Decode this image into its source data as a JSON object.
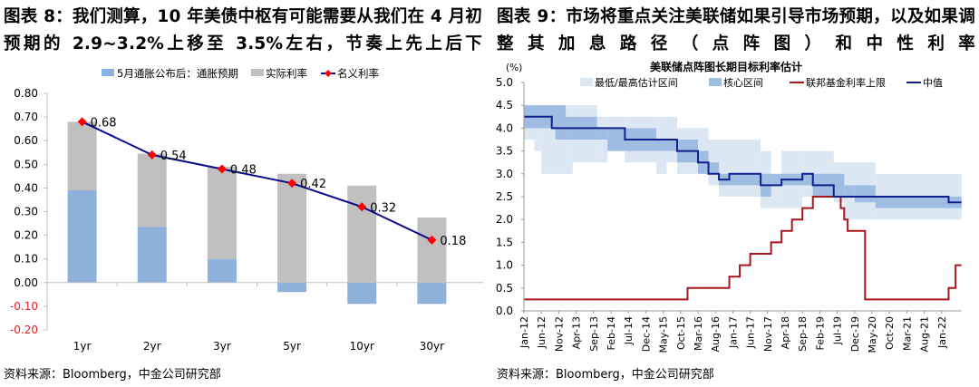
{
  "left": {
    "title": "图表 8：我们测算，10 年美债中枢有可能需要从我们在 4 月初预期的 2.9~3.2%上移至 3.5%左右，节奏上先上后下",
    "source": "资料来源：Bloomberg，中金公司研究部"
  },
  "right": {
    "title": "图表 9：市场将重点关注美联储如果引导市场预期，以及如果调整其加息路径（点阵图）和中性利率",
    "source": "资料来源：Bloomberg，中金公司研究部"
  },
  "chart_data": [
    {
      "type": "bar",
      "stacked": true,
      "categories": [
        "1yr",
        "2yr",
        "3yr",
        "5yr",
        "10yr",
        "30yr"
      ],
      "series": [
        {
          "name": "5月通胀公布后：通胀预期",
          "kind": "bar",
          "color": "#8eb1dc",
          "values": [
            0.39,
            0.235,
            0.1,
            -0.04,
            -0.09,
            -0.09
          ]
        },
        {
          "name": "实际利率",
          "kind": "bar",
          "color": "#c0c0c0",
          "values": [
            0.29,
            0.31,
            0.39,
            0.46,
            0.41,
            0.275
          ]
        },
        {
          "name": "名义利率",
          "kind": "line",
          "color": "#0a0a8c",
          "marker_color": "#ff0000",
          "values": [
            0.68,
            0.54,
            0.48,
            0.42,
            0.32,
            0.18
          ],
          "labels": [
            "0.68",
            "0.54",
            "0.48",
            "0.42",
            "0.32",
            "0.18"
          ]
        }
      ],
      "yticks": [
        "0.80",
        "0.70",
        "0.60",
        "0.50",
        "0.40",
        "0.30",
        "0.20",
        "0.10",
        "0.00",
        "-0.10",
        "-0.20"
      ],
      "ylim": [
        -0.2,
        0.8
      ],
      "negative_tick_color": "#e0202a",
      "legend": "top"
    },
    {
      "type": "line",
      "title": "美联储点阵图长期目标利率估计",
      "ylabel": "(%)",
      "ylim": [
        0,
        5
      ],
      "yticks": [
        "5.0",
        "4.5",
        "4.0",
        "3.5",
        "3.0",
        "2.5",
        "2.0",
        "1.5",
        "1.0",
        "0.5",
        "0.0"
      ],
      "xrange": [
        "2012-01",
        "2022-06"
      ],
      "xticks": [
        "Jan-12",
        "Jun-12",
        "Nov-12",
        "Apr-13",
        "Sep-13",
        "Feb-14",
        "Jul-14",
        "Dec-14",
        "May-15",
        "Oct-15",
        "Mar-16",
        "Aug-16",
        "Jan-17",
        "Jun-17",
        "Nov-17",
        "Apr-18",
        "Sep-18",
        "Feb-19",
        "Jul-19",
        "Dec-19",
        "May-20",
        "Oct-20",
        "Mar-21",
        "Aug-21",
        "Jan-22"
      ],
      "legend": "top",
      "series": [
        {
          "name": "最低/最高估计区间",
          "kind": "range",
          "color": "#dce7f4",
          "steps": [
            [
              "2012-01",
              3.75,
              4.5
            ],
            [
              "2012-04",
              3.5,
              4.5
            ],
            [
              "2012-06",
              3.0,
              4.5
            ],
            [
              "2013-03",
              3.25,
              4.5
            ],
            [
              "2013-10",
              3.25,
              4.25
            ],
            [
              "2014-01",
              3.5,
              4.25
            ],
            [
              "2014-06",
              3.25,
              4.25
            ],
            [
              "2015-03",
              3.0,
              4.25
            ],
            [
              "2015-06",
              3.25,
              4.25
            ],
            [
              "2015-09",
              3.0,
              4.0
            ],
            [
              "2016-06",
              2.75,
              3.75
            ],
            [
              "2016-09",
              2.5,
              3.75
            ],
            [
              "2017-09",
              2.25,
              3.5
            ],
            [
              "2017-12",
              2.25,
              3.0
            ],
            [
              "2018-03",
              2.25,
              3.5
            ],
            [
              "2018-09",
              2.5,
              3.5
            ],
            [
              "2019-06",
              2.375,
              3.25
            ],
            [
              "2019-09",
              2.0,
              3.25
            ],
            [
              "2020-06",
              2.0,
              3.0
            ]
          ]
        },
        {
          "name": "核心区间",
          "kind": "range",
          "color": "#9fbde3",
          "steps": [
            [
              "2012-01",
              4.0,
              4.5
            ],
            [
              "2012-10",
              3.75,
              4.5
            ],
            [
              "2013-01",
              3.75,
              4.25
            ],
            [
              "2013-10",
              3.75,
              4.0
            ],
            [
              "2014-01",
              3.5,
              4.0
            ],
            [
              "2015-03",
              3.5,
              3.75
            ],
            [
              "2015-09",
              3.25,
              3.75
            ],
            [
              "2016-03",
              3.0,
              3.5
            ],
            [
              "2016-06",
              3.0,
              3.25
            ],
            [
              "2016-09",
              2.75,
              3.0
            ],
            [
              "2017-09",
              2.5,
              3.0
            ],
            [
              "2017-12",
              2.75,
              3.0
            ],
            [
              "2018-12",
              2.5,
              3.0
            ],
            [
              "2019-09",
              2.5,
              2.75
            ],
            [
              "2019-12",
              2.375,
              2.75
            ],
            [
              "2020-06",
              2.25,
              2.5
            ]
          ]
        },
        {
          "name": "联邦基金利率上限",
          "kind": "step",
          "color": "#a8171f",
          "steps": [
            [
              "2012-01",
              0.25
            ],
            [
              "2015-12",
              0.5
            ],
            [
              "2016-12",
              0.75
            ],
            [
              "2017-03",
              1.0
            ],
            [
              "2017-06",
              1.25
            ],
            [
              "2017-12",
              1.5
            ],
            [
              "2018-03",
              1.75
            ],
            [
              "2018-06",
              2.0
            ],
            [
              "2018-09",
              2.25
            ],
            [
              "2018-12",
              2.5
            ],
            [
              "2019-08",
              2.25
            ],
            [
              "2019-09",
              2.0
            ],
            [
              "2019-10",
              1.75
            ],
            [
              "2020-03",
              1.25
            ],
            [
              "2020-03",
              0.25
            ],
            [
              "2022-03",
              0.5
            ],
            [
              "2022-05",
              1.0
            ]
          ]
        },
        {
          "name": "中值",
          "kind": "step",
          "color": "#10208a",
          "steps": [
            [
              "2012-01",
              4.25
            ],
            [
              "2012-09",
              4.0
            ],
            [
              "2014-06",
              3.75
            ],
            [
              "2015-09",
              3.5
            ],
            [
              "2016-03",
              3.25
            ],
            [
              "2016-06",
              3.0
            ],
            [
              "2016-09",
              2.875
            ],
            [
              "2016-12",
              3.0
            ],
            [
              "2017-09",
              2.75
            ],
            [
              "2018-03",
              2.875
            ],
            [
              "2018-09",
              3.0
            ],
            [
              "2018-12",
              2.75
            ],
            [
              "2019-06",
              2.5
            ],
            [
              "2022-03",
              2.375
            ]
          ]
        }
      ]
    }
  ]
}
